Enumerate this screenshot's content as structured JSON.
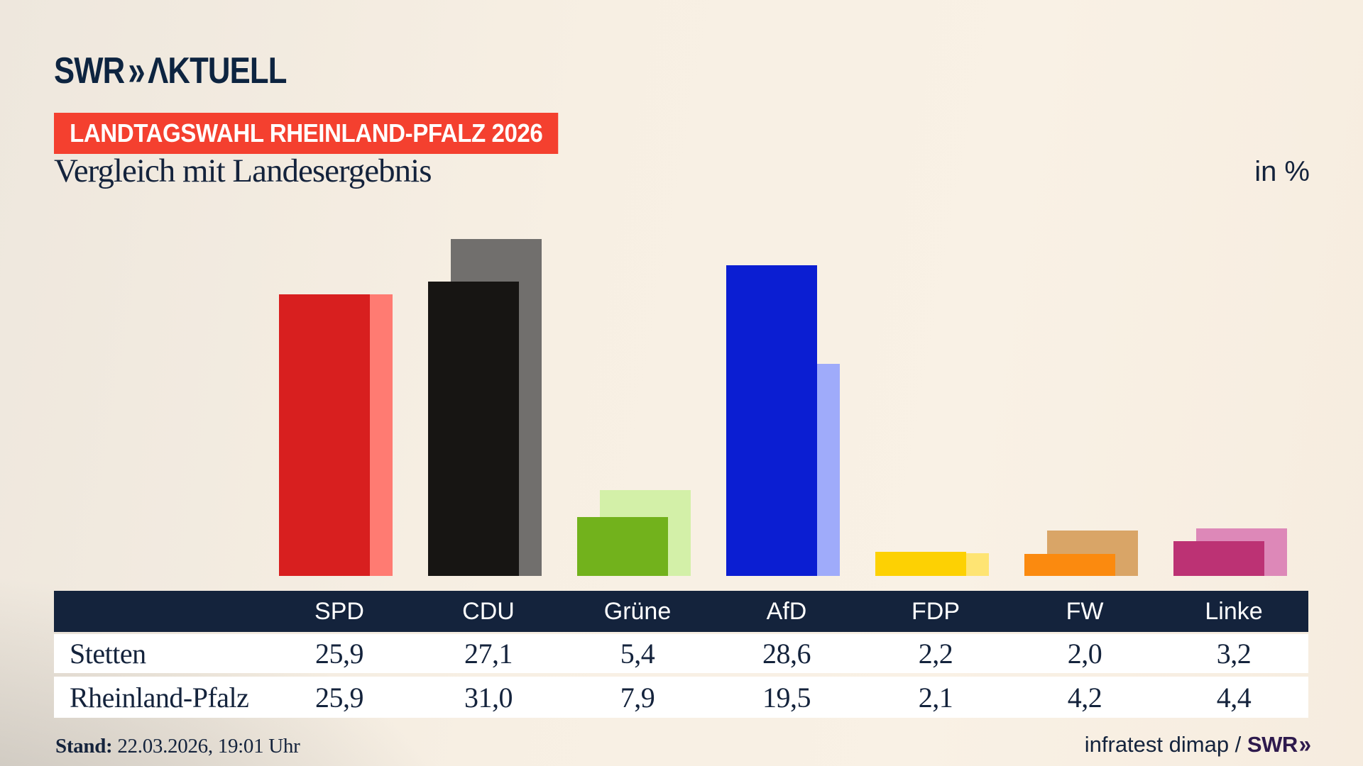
{
  "logo": {
    "brand": "SWR",
    "chevrons": "»",
    "product": "ΛKTUELL"
  },
  "badge": {
    "label": "LANDTAGSWAHL RHEINLAND-PFALZ 2026"
  },
  "title": "Vergleich mit Landesergebnis",
  "unit_label": "in %",
  "chart_data": {
    "type": "bar",
    "title": "Vergleich mit Landesergebnis",
    "unit": "in %",
    "categories": [
      "SPD",
      "CDU",
      "Grüne",
      "AfD",
      "FDP",
      "FW",
      "Linke"
    ],
    "series": [
      {
        "name": "Stetten",
        "values": [
          25.9,
          27.1,
          5.4,
          28.6,
          2.2,
          2.0,
          3.2
        ]
      },
      {
        "name": "Rheinland-Pfalz",
        "values": [
          25.9,
          31.0,
          7.9,
          19.5,
          2.1,
          4.2,
          4.4
        ]
      }
    ],
    "bar_colors": {
      "front": [
        "#d81f1f",
        "#171513",
        "#72b21c",
        "#0b1ed2",
        "#fdd103",
        "#fb8a0f",
        "#bc3274"
      ],
      "back": [
        "#ff7b72",
        "#716f6d",
        "#d3f0a8",
        "#9fabfa",
        "#fee473",
        "#d9a567",
        "#dd88b8"
      ]
    },
    "ylim": [
      0,
      31
    ],
    "grid": false,
    "legend_position": "table-rows",
    "value_decimal_separator": ","
  },
  "footer": {
    "stand_label": "Stand:",
    "stand_value": "22.03.2026, 19:01 Uhr",
    "source_text": "infratest dimap /",
    "source_brand": "SWR",
    "source_chevrons": "»"
  },
  "colors": {
    "background_cream": "#f8f0e4",
    "navy": "#14233c",
    "badge_bg": "#f4402f",
    "badge_text": "#ffffff",
    "logo_navy": "#0d2440",
    "table_header_bg": "#14233c",
    "table_row_bg": "#ffffff",
    "source_brand_purple": "#2e1a4d"
  }
}
